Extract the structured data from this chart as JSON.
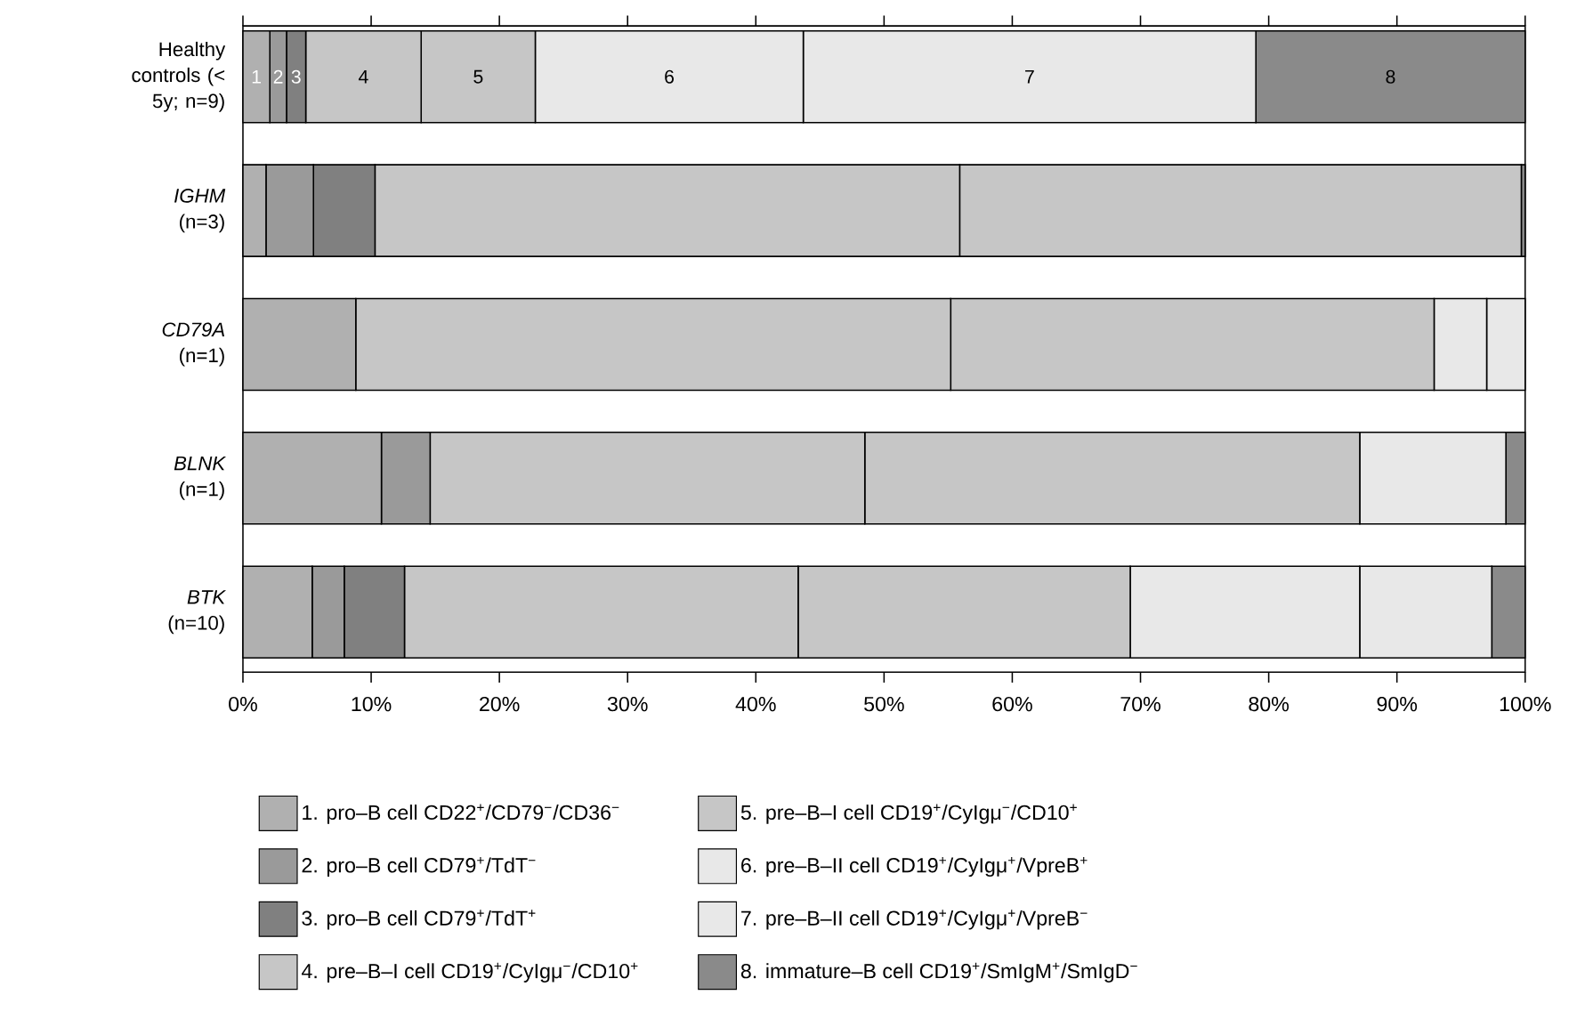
{
  "chart_data": {
    "type": "bar",
    "orientation": "horizontal",
    "stacked": true,
    "legend": "bottom",
    "grid": false,
    "categories": [
      "Healthy controls (< 5y; n=9)",
      "*IGHM* (n=3)",
      "*CD79A* (n=1)",
      "*BLNK* (n=1)",
      "*BTK* (n=10)"
    ],
    "xlim": [
      0,
      100
    ],
    "xticks": [
      {
        "value": 0,
        "label": "0%"
      },
      {
        "value": 10,
        "label": "10%"
      },
      {
        "value": 20,
        "label": "20%"
      },
      {
        "value": 30,
        "label": "30%"
      },
      {
        "value": 40,
        "label": "40%"
      },
      {
        "value": 50,
        "label": "50%"
      },
      {
        "value": 60,
        "label": "60%"
      },
      {
        "value": 70,
        "label": "70%"
      },
      {
        "value": 80,
        "label": "80%"
      },
      {
        "value": 90,
        "label": "90%"
      },
      {
        "value": 100,
        "label": "100%"
      }
    ],
    "series": [
      {
        "name": "1. pro–B cell CD22$^{+}$/CD79$^{−}$/CD36$^{−}$",
        "color": "#b0b0b0",
        "values": [
          2.1,
          1.8,
          8.8,
          10.8,
          5.4
        ]
      },
      {
        "name": "2. pro–B cell CD79$^{+}$/TdT$^{−}$",
        "color": "#9a9a9a",
        "values": [
          1.3,
          3.7,
          0,
          3.8,
          2.5
        ]
      },
      {
        "name": "3. pro–B cell CD79$^{+}$/TdT$^{+}$",
        "color": "#808080",
        "values": [
          1.5,
          4.8,
          0,
          0,
          4.7
        ]
      },
      {
        "name": "4. pre–B–I cell CD19$^{+}$/CyIgμ$^{−}$/CD10$^{+}$",
        "color": "#c6c6c6",
        "values": [
          9.0,
          45.6,
          46.4,
          33.9,
          30.7
        ]
      },
      {
        "name": "5. pre–B–I cell CD19$^{+}$/CyIgμ$^{−}$/CD10$^{+}$",
        "color": "#c6c6c6",
        "values": [
          8.9,
          43.8,
          37.7,
          38.6,
          25.9
        ]
      },
      {
        "name": "6. pre–B–II cell CD19$^{+}$/CyIgμ$^{+}$/VpreB$^{+}$",
        "color": "#e8e8e8",
        "values": [
          20.9,
          0,
          4.1,
          11.4,
          17.9
        ]
      },
      {
        "name": "7. pre–B–II cell CD19$^{+}$/CyIgμ$^{+}$/VpreB$^{−}$",
        "color": "#e8e8e8",
        "values": [
          35.3,
          0,
          3.0,
          0,
          10.3
        ]
      },
      {
        "name": "8. immature–B cell CD19$^{+}$/SmIgM$^{+}$/SmIgD$^{−}$",
        "color": "#8a8a8a",
        "values": [
          21.0,
          0.3,
          0,
          1.5,
          2.6
        ]
      }
    ],
    "annotations": [
      "1",
      "2",
      "3",
      "4",
      "5",
      "6",
      "7",
      "8"
    ]
  }
}
